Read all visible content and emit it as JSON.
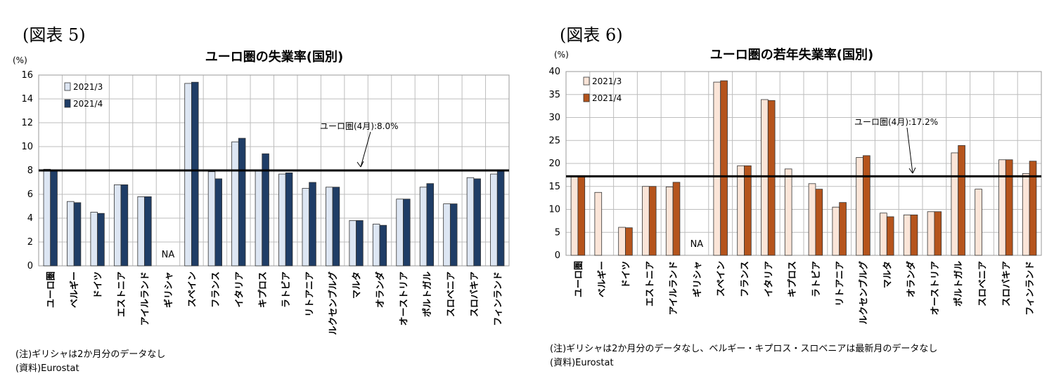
{
  "figures": [
    {
      "label": "(図表 5)",
      "notes": [
        "(注)ギリシャは2か月分のデータなし",
        "(資料)Eurostat"
      ]
    },
    {
      "label": "(図表 6)",
      "notes": [
        "(注)ギリシャは2か月分のデータなし、ベルギー・キプロス・スロベニアは最新月のデータなし",
        "(資料)Eurostat"
      ]
    }
  ],
  "chart_data": [
    {
      "type": "bar",
      "title": "ユーロ圏の失業率(国別)",
      "unit_label": "(%)",
      "ylim": [
        0,
        16
      ],
      "yticks": [
        0,
        2,
        4,
        6,
        8,
        10,
        12,
        14,
        16
      ],
      "grid": true,
      "legend_position": "top-left",
      "categories": [
        "ユーロ圏",
        "ベルギー",
        "ドイツ",
        "エストニア",
        "アイルランド",
        "ギリシャ",
        "スペイン",
        "フランス",
        "イタリア",
        "キプロス",
        "ラトビア",
        "リトアニア",
        "ルクセンブルグ",
        "マルタ",
        "オランダ",
        "オーストリア",
        "ポルトガル",
        "スロベニア",
        "スロバキア",
        "フィンランド"
      ],
      "series": [
        {
          "name": "2021/3",
          "color": "#dde6f3",
          "values": [
            8.1,
            5.4,
            4.5,
            6.8,
            5.8,
            null,
            15.3,
            7.9,
            10.4,
            8.0,
            7.7,
            6.5,
            6.6,
            3.8,
            3.5,
            5.6,
            6.6,
            5.2,
            7.4,
            7.7
          ]
        },
        {
          "name": "2021/4",
          "color": "#1f3d66",
          "values": [
            8.0,
            5.3,
            4.4,
            6.8,
            5.8,
            null,
            15.4,
            7.3,
            10.7,
            9.4,
            7.8,
            7.0,
            6.6,
            3.8,
            3.4,
            5.6,
            6.9,
            5.2,
            7.3,
            8.0
          ]
        }
      ],
      "reference_line": {
        "value": 8.0,
        "label": "ユーロ圏(4月):8.0%"
      },
      "na_label": "NA"
    },
    {
      "type": "bar",
      "title": "ユーロ圏の若年失業率(国別)",
      "unit_label": "(%)",
      "ylim": [
        0,
        40
      ],
      "yticks": [
        0,
        5,
        10,
        15,
        20,
        25,
        30,
        35,
        40
      ],
      "grid": true,
      "legend_position": "top-left",
      "categories": [
        "ユーロ圏",
        "ベルギー",
        "ドイツ",
        "エストニア",
        "アイルランド",
        "ギリシャ",
        "スペイン",
        "フランス",
        "イタリア",
        "キプロス",
        "ラトビア",
        "リトアニア",
        "ルクセンブルグ",
        "マルタ",
        "オランダ",
        "オーストリア",
        "ポルトガル",
        "スロベニア",
        "スロバキア",
        "フィンランド"
      ],
      "series": [
        {
          "name": "2021/3",
          "color": "#fbe5d8",
          "values": [
            17.3,
            13.7,
            6.1,
            15.0,
            14.9,
            null,
            37.7,
            19.5,
            33.9,
            18.8,
            15.6,
            10.5,
            21.3,
            9.2,
            8.8,
            9.5,
            22.3,
            14.4,
            20.8,
            17.8
          ]
        },
        {
          "name": "2021/4",
          "color": "#b5541c",
          "values": [
            17.2,
            null,
            6.0,
            15.0,
            15.9,
            null,
            38.0,
            19.5,
            33.7,
            null,
            14.4,
            11.5,
            21.7,
            8.4,
            8.8,
            9.5,
            23.9,
            null,
            20.8,
            20.5
          ]
        }
      ],
      "reference_line": {
        "value": 17.2,
        "label": "ユーロ圏(4月):17.2%"
      },
      "na_label": "NA"
    }
  ]
}
